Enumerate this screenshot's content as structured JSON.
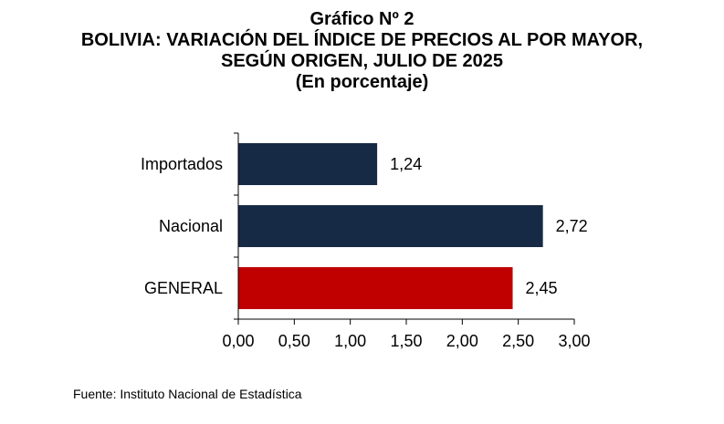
{
  "header": {
    "chart_number": "Gráfico Nº 2",
    "title_line1": "BOLIVIA: VARIACIÓN DEL ÍNDICE DE PRECIOS AL POR MAYOR,",
    "title_line2": "SEGÚN ORIGEN, JULIO DE 2025",
    "subtitle": "(En porcentaje)"
  },
  "source": "Fuente: Instituto Nacional de Estadística",
  "colors": {
    "navy": "#172A45",
    "red": "#C00000",
    "axis": "#000000"
  },
  "chart_data": {
    "type": "bar",
    "orientation": "horizontal",
    "title": "BOLIVIA: VARIACIÓN DEL ÍNDICE DE PRECIOS AL POR MAYOR, SEGÚN ORIGEN, JULIO DE 2025",
    "subtitle": "(En porcentaje)",
    "categories": [
      "Importados",
      "Nacional",
      "GENERAL"
    ],
    "values": [
      1.24,
      2.72,
      2.45
    ],
    "value_labels": [
      "1,24",
      "2,72",
      "2,45"
    ],
    "bar_colors": [
      "#172A45",
      "#172A45",
      "#C00000"
    ],
    "xlim": [
      0,
      3
    ],
    "xticks": [
      0,
      0.5,
      1,
      1.5,
      2,
      2.5,
      3
    ],
    "xtick_labels": [
      "0,00",
      "0,50",
      "1,00",
      "1,50",
      "2,00",
      "2,50",
      "3,00"
    ],
    "xlabel": "",
    "ylabel": "",
    "grid": false,
    "legend": "none"
  }
}
